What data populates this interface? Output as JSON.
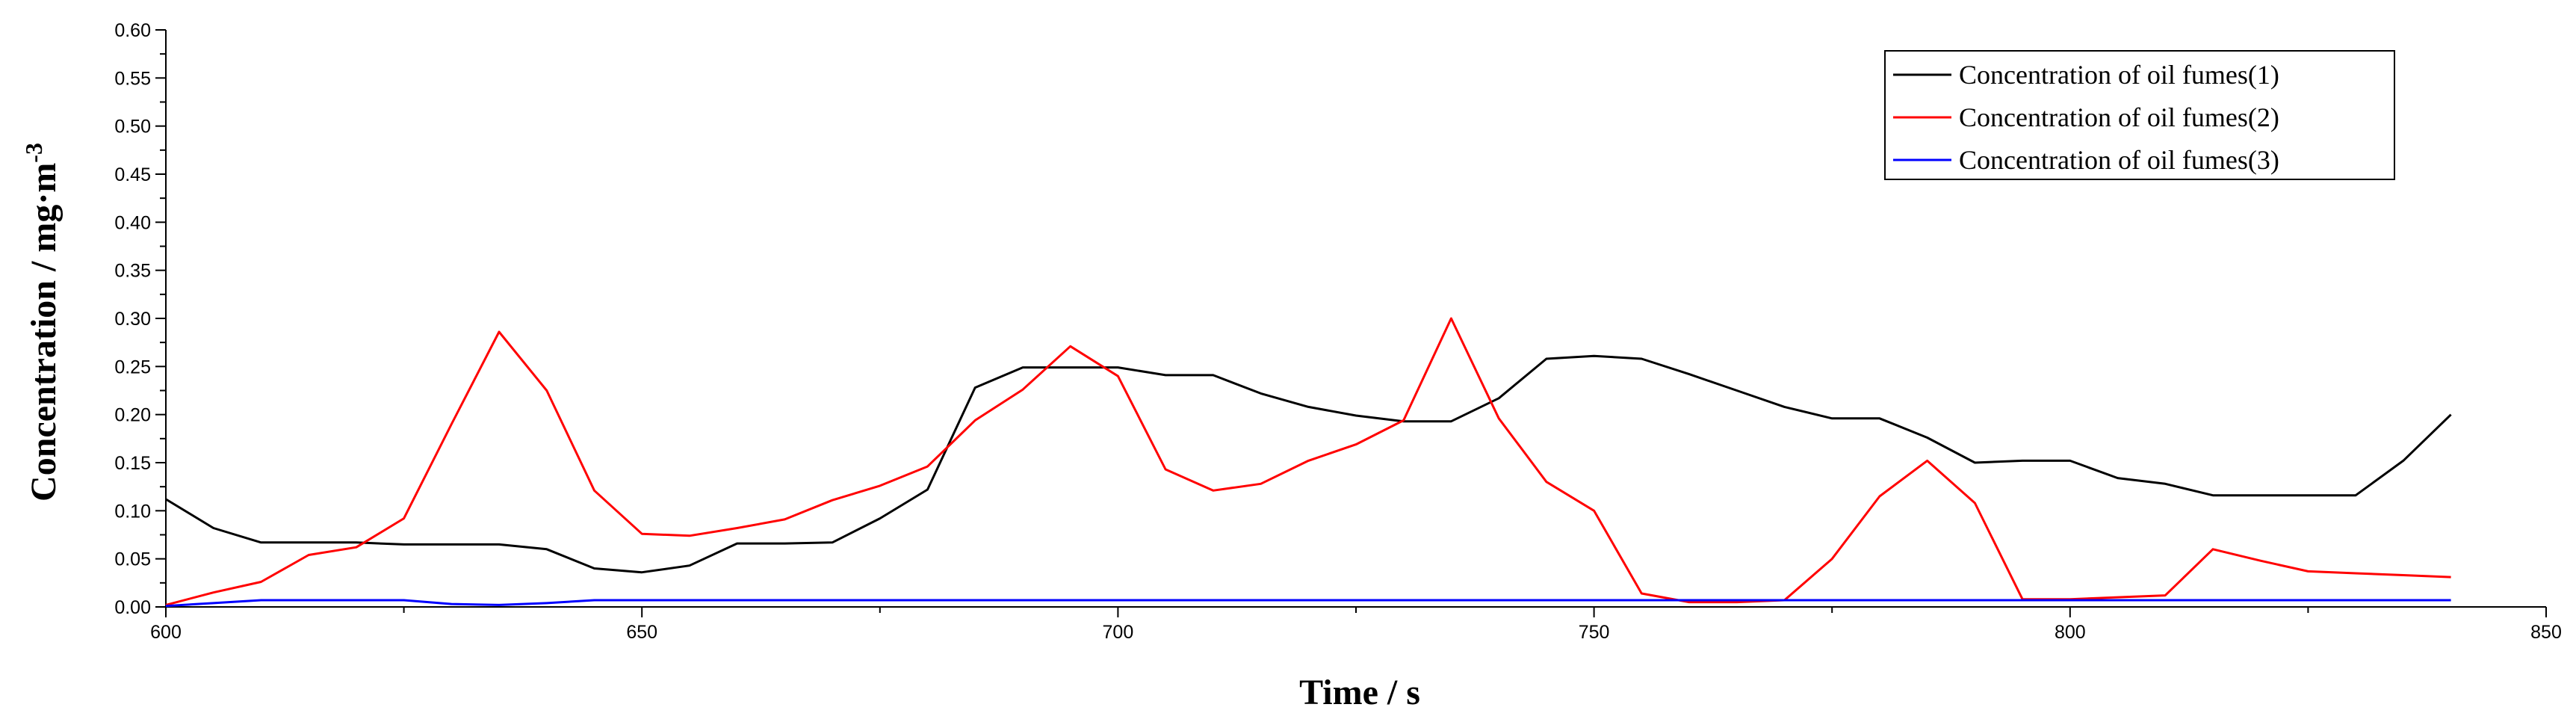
{
  "chart_data": {
    "type": "line",
    "xlabel": "Time / s",
    "ylabel_main": "Concentration / mg·m",
    "ylabel_sup": "-3",
    "xlim": [
      600,
      850
    ],
    "ylim": [
      0,
      0.6
    ],
    "x_ticks": [
      600,
      650,
      700,
      750,
      800,
      850
    ],
    "y_ticks": [
      0.0,
      0.05,
      0.1,
      0.15,
      0.2,
      0.25,
      0.3,
      0.35,
      0.4,
      0.45,
      0.5,
      0.55,
      0.6
    ],
    "x_tick_labels": [
      "600",
      "650",
      "700",
      "750",
      "800",
      "850"
    ],
    "y_tick_labels": [
      "0.00",
      "0.05",
      "0.10",
      "0.15",
      "0.20",
      "0.25",
      "0.30",
      "0.35",
      "0.40",
      "0.45",
      "0.50",
      "0.55",
      "0.60"
    ],
    "grid": false,
    "legend_position": "top-right",
    "series": [
      {
        "name": "Concentration of oil fumes(1)",
        "color": "#000000",
        "x": [
          600,
          605,
          610,
          615,
          620,
          625,
          630,
          635,
          640,
          645,
          650,
          655,
          660,
          665,
          670,
          675,
          680,
          685,
          690,
          695,
          700,
          705,
          710,
          715,
          720,
          725,
          730,
          735,
          740,
          745,
          750,
          755,
          760,
          765,
          770,
          775,
          780,
          785,
          790,
          795,
          800,
          805,
          810,
          815,
          820,
          825,
          830,
          835,
          840
        ],
        "y": [
          0.112,
          0.082,
          0.067,
          0.067,
          0.067,
          0.065,
          0.065,
          0.065,
          0.06,
          0.04,
          0.036,
          0.043,
          0.066,
          0.066,
          0.067,
          0.092,
          0.122,
          0.228,
          0.249,
          0.249,
          0.249,
          0.241,
          0.241,
          0.222,
          0.208,
          0.199,
          0.193,
          0.193,
          0.217,
          0.258,
          0.261,
          0.258,
          0.242,
          0.225,
          0.208,
          0.196,
          0.196,
          0.176,
          0.15,
          0.152,
          0.152,
          0.134,
          0.128,
          0.116,
          0.116,
          0.116,
          0.116,
          0.152,
          0.2
        ]
      },
      {
        "name": "Concentration of oil fumes(2)",
        "color": "#ff0000",
        "x": [
          600,
          605,
          610,
          615,
          620,
          625,
          630,
          635,
          640,
          645,
          650,
          655,
          660,
          665,
          670,
          675,
          680,
          685,
          690,
          695,
          700,
          705,
          710,
          715,
          720,
          725,
          730,
          735,
          740,
          745,
          750,
          755,
          760,
          765,
          770,
          775,
          780,
          785,
          790,
          795,
          800,
          805,
          810,
          815,
          820,
          825,
          830,
          835,
          840
        ],
        "y": [
          0.002,
          0.015,
          0.026,
          0.054,
          0.062,
          0.092,
          0.19,
          0.286,
          0.225,
          0.121,
          0.076,
          0.074,
          0.082,
          0.091,
          0.111,
          0.126,
          0.146,
          0.194,
          0.226,
          0.271,
          0.24,
          0.143,
          0.121,
          0.128,
          0.152,
          0.169,
          0.194,
          0.3,
          0.196,
          0.13,
          0.1,
          0.014,
          0.005,
          0.005,
          0.007,
          0.05,
          0.115,
          0.152,
          0.108,
          0.008,
          0.008,
          0.01,
          0.012,
          0.06,
          0.048,
          0.037,
          0.035,
          0.033,
          0.031
        ]
      },
      {
        "name": "Concentration of oil fumes(3)",
        "color": "#0000ff",
        "x": [
          600,
          605,
          610,
          615,
          620,
          625,
          630,
          635,
          640,
          645,
          650,
          660,
          680,
          700,
          720,
          740,
          760,
          780,
          800,
          820,
          840
        ],
        "y": [
          0.001,
          0.004,
          0.007,
          0.007,
          0.007,
          0.007,
          0.003,
          0.002,
          0.004,
          0.007,
          0.007,
          0.007,
          0.007,
          0.007,
          0.007,
          0.007,
          0.007,
          0.007,
          0.007,
          0.007,
          0.007
        ]
      }
    ]
  }
}
